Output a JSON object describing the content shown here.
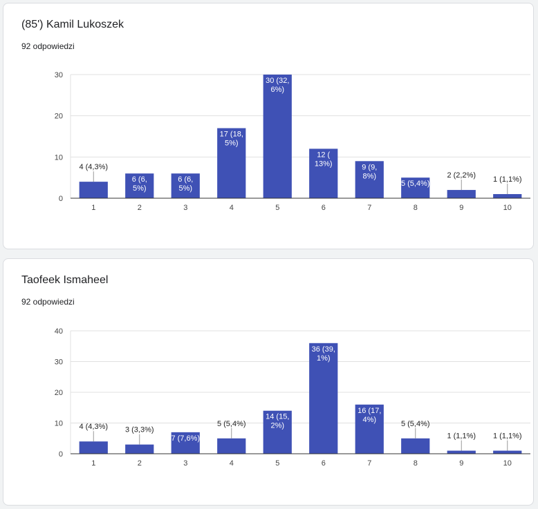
{
  "questions": [
    {
      "title": "(85') Kamil Lukoszek",
      "response_count": "92 odpowiedzi"
    },
    {
      "title": "Taofeek Ismaheel",
      "response_count": "92 odpowiedzi"
    }
  ],
  "colors": {
    "bar": "#3f51b5",
    "grid": "#e0e0e0",
    "axis": "#333333"
  },
  "chart_data": [
    {
      "type": "bar",
      "categories": [
        "1",
        "2",
        "3",
        "4",
        "5",
        "6",
        "7",
        "8",
        "9",
        "10"
      ],
      "values": [
        4,
        6,
        6,
        17,
        30,
        12,
        9,
        5,
        2,
        1
      ],
      "data_labels": [
        [
          "4 (4,3%)"
        ],
        [
          "6 (6,",
          "5%)"
        ],
        [
          "6 (6,",
          "5%)"
        ],
        [
          "17 (18,",
          "5%)"
        ],
        [
          "30 (32,",
          "6%)"
        ],
        [
          "12 (",
          "13%)"
        ],
        [
          "9 (9,",
          "8%)"
        ],
        [
          "5 (5,4%)"
        ],
        [
          "2 (2,2%)"
        ],
        [
          "1 (1,1%)"
        ]
      ],
      "ylim": [
        0,
        30
      ],
      "yticks": [
        0,
        10,
        20,
        30
      ],
      "grid": true
    },
    {
      "type": "bar",
      "categories": [
        "1",
        "2",
        "3",
        "4",
        "5",
        "6",
        "7",
        "8",
        "9",
        "10"
      ],
      "values": [
        4,
        3,
        7,
        5,
        14,
        36,
        16,
        5,
        1,
        1
      ],
      "data_labels": [
        [
          "4 (4,3%)"
        ],
        [
          "3 (3,3%)"
        ],
        [
          "7 (7,6%)"
        ],
        [
          "5 (5,4%)"
        ],
        [
          "14 (15,",
          "2%)"
        ],
        [
          "36 (39,",
          "1%)"
        ],
        [
          "16 (17,",
          "4%)"
        ],
        [
          "5 (5,4%)"
        ],
        [
          "1 (1,1%)"
        ],
        [
          "1 (1,1%)"
        ]
      ],
      "ylim": [
        0,
        40
      ],
      "yticks": [
        0,
        10,
        20,
        30,
        40
      ],
      "grid": true
    }
  ]
}
